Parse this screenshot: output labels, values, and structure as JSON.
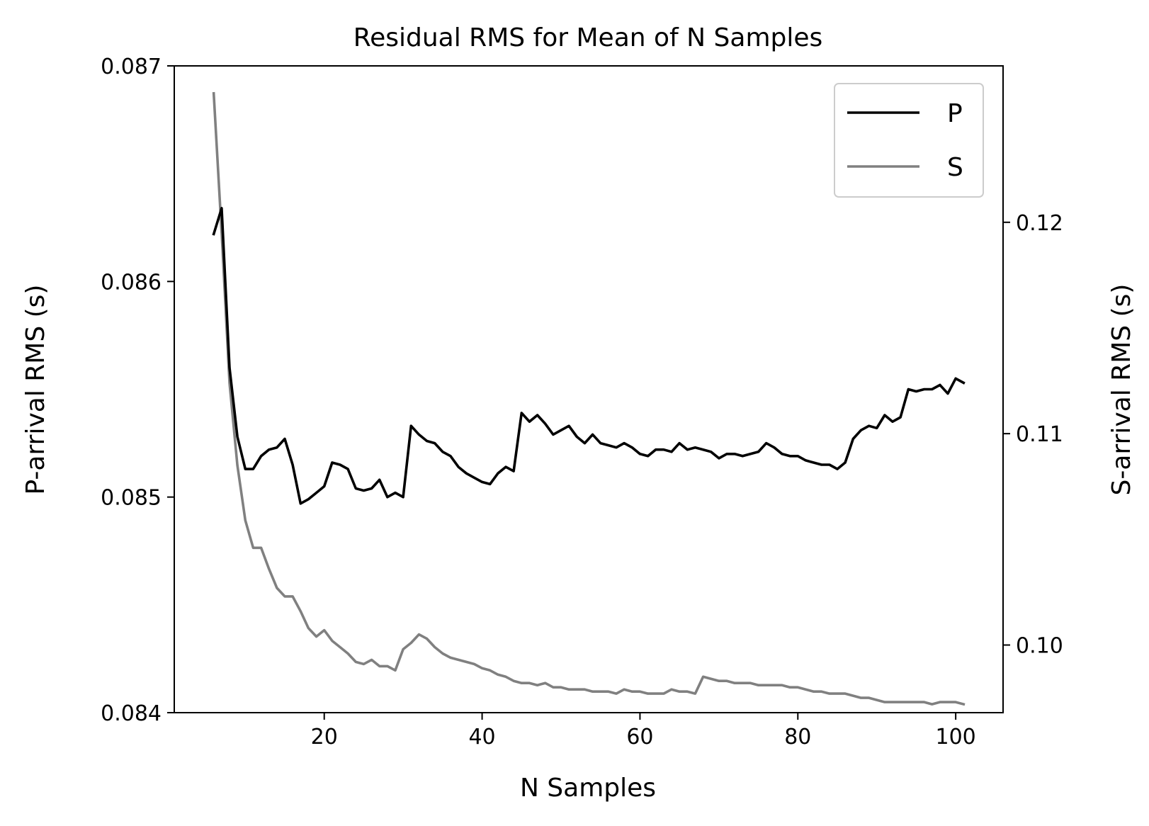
{
  "chart_data": {
    "type": "line",
    "title": "Residual RMS for Mean of N Samples",
    "xlabel": "N Samples",
    "ylabel": "P-arrival RMS (s)",
    "ylabel_right": "S-arrival RMS (s)",
    "xlim": [
      1,
      106
    ],
    "ylim": [
      0.084,
      0.087
    ],
    "ylim_right": [
      0.0968,
      0.1274
    ],
    "x_ticks": [
      "20",
      "40",
      "60",
      "80",
      "100"
    ],
    "y_ticks": [
      "0.084",
      "0.085",
      "0.086",
      "0.087"
    ],
    "y_ticks_right": [
      "0.10",
      "0.11",
      "0.12"
    ],
    "grid": false,
    "legend_position": "top-right",
    "x": [
      6,
      7,
      8,
      9,
      10,
      11,
      12,
      13,
      14,
      15,
      16,
      17,
      18,
      19,
      20,
      21,
      22,
      23,
      24,
      25,
      26,
      27,
      28,
      29,
      30,
      31,
      32,
      33,
      34,
      35,
      36,
      37,
      38,
      39,
      40,
      41,
      42,
      43,
      44,
      45,
      46,
      47,
      48,
      49,
      50,
      51,
      52,
      53,
      54,
      55,
      56,
      57,
      58,
      59,
      60,
      61,
      62,
      63,
      64,
      65,
      66,
      67,
      68,
      69,
      70,
      71,
      72,
      73,
      74,
      75,
      76,
      77,
      78,
      79,
      80,
      81,
      82,
      83,
      84,
      85,
      86,
      87,
      88,
      89,
      90,
      91,
      92,
      93,
      94,
      95,
      96,
      97,
      98,
      99,
      100,
      101
    ],
    "series": [
      {
        "name": "P",
        "axis": "left",
        "color": "#000000",
        "values": [
          0.08622,
          0.08634,
          0.0856,
          0.08528,
          0.08513,
          0.08513,
          0.08519,
          0.08522,
          0.08523,
          0.08527,
          0.08515,
          0.08497,
          0.08499,
          0.08502,
          0.08505,
          0.08516,
          0.08515,
          0.08513,
          0.08504,
          0.08503,
          0.08504,
          0.08508,
          0.085,
          0.08502,
          0.085,
          0.08533,
          0.08529,
          0.08526,
          0.08525,
          0.08521,
          0.08519,
          0.08514,
          0.08511,
          0.08509,
          0.08507,
          0.08506,
          0.08511,
          0.08514,
          0.08512,
          0.08539,
          0.08535,
          0.08538,
          0.08534,
          0.08529,
          0.08531,
          0.08533,
          0.08528,
          0.08525,
          0.08529,
          0.08525,
          0.08524,
          0.08523,
          0.08525,
          0.08523,
          0.0852,
          0.08519,
          0.08522,
          0.08522,
          0.08521,
          0.08525,
          0.08522,
          0.08523,
          0.08522,
          0.08521,
          0.08518,
          0.0852,
          0.0852,
          0.08519,
          0.0852,
          0.08521,
          0.08525,
          0.08523,
          0.0852,
          0.08519,
          0.08519,
          0.08517,
          0.08516,
          0.08515,
          0.08515,
          0.08513,
          0.08516,
          0.08527,
          0.08531,
          0.08533,
          0.08532,
          0.08538,
          0.08535,
          0.08537,
          0.0855,
          0.08549,
          0.0855,
          0.0855,
          0.08552,
          0.08548,
          0.08555,
          0.08553
        ]
      },
      {
        "name": "S",
        "axis": "right",
        "color": "#808080",
        "values": [
          0.1261,
          0.1195,
          0.1124,
          0.1085,
          0.1059,
          0.1046,
          0.1046,
          0.1036,
          0.1027,
          0.1023,
          0.1023,
          0.1016,
          0.1008,
          0.1004,
          0.1007,
          0.1002,
          0.0999,
          0.0996,
          0.0992,
          0.0991,
          0.0993,
          0.099,
          0.099,
          0.0988,
          0.0998,
          0.1001,
          0.1005,
          0.1003,
          0.0999,
          0.0996,
          0.0994,
          0.0993,
          0.0992,
          0.0991,
          0.0989,
          0.0988,
          0.0986,
          0.0985,
          0.0983,
          0.0982,
          0.0982,
          0.0981,
          0.0982,
          0.098,
          0.098,
          0.0979,
          0.0979,
          0.0979,
          0.0978,
          0.0978,
          0.0978,
          0.0977,
          0.0979,
          0.0978,
          0.0978,
          0.0977,
          0.0977,
          0.0977,
          0.0979,
          0.0978,
          0.0978,
          0.0977,
          0.0985,
          0.0984,
          0.0983,
          0.0983,
          0.0982,
          0.0982,
          0.0982,
          0.0981,
          0.0981,
          0.0981,
          0.0981,
          0.098,
          0.098,
          0.0979,
          0.0978,
          0.0978,
          0.0977,
          0.0977,
          0.0977,
          0.0976,
          0.0975,
          0.0975,
          0.0974,
          0.0973,
          0.0973,
          0.0973,
          0.0973,
          0.0973,
          0.0973,
          0.0972,
          0.0973,
          0.0973,
          0.0973,
          0.0972
        ]
      }
    ]
  }
}
